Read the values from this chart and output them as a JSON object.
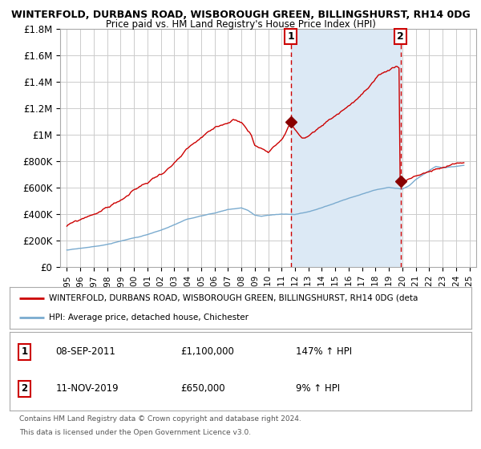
{
  "title": "WINTERFOLD, DURBANS ROAD, WISBOROUGH GREEN, BILLINGSHURST, RH14 0DG",
  "subtitle": "Price paid vs. HM Land Registry's House Price Index (HPI)",
  "legend_line1": "WINTERFOLD, DURBANS ROAD, WISBOROUGH GREEN, BILLINGSHURST, RH14 0DG (deta",
  "legend_line2": "HPI: Average price, detached house, Chichester",
  "footnote1": "Contains HM Land Registry data © Crown copyright and database right 2024.",
  "footnote2": "This data is licensed under the Open Government Licence v3.0.",
  "sale1_label": "1",
  "sale1_date": "08-SEP-2011",
  "sale1_price": "£1,100,000",
  "sale1_hpi": "147% ↑ HPI",
  "sale1_year": 2011.69,
  "sale1_value": 1100000,
  "sale2_label": "2",
  "sale2_date": "11-NOV-2019",
  "sale2_price": "£650,000",
  "sale2_hpi": "9% ↑ HPI",
  "sale2_year": 2019.86,
  "sale2_value": 650000,
  "ylim": [
    0,
    1800000
  ],
  "xlim_start": 1994.5,
  "xlim_end": 2025.5,
  "red_color": "#cc0000",
  "blue_color": "#7aabcf",
  "shade_color": "#dce9f5",
  "background_color": "#ffffff",
  "grid_color": "#cccccc"
}
